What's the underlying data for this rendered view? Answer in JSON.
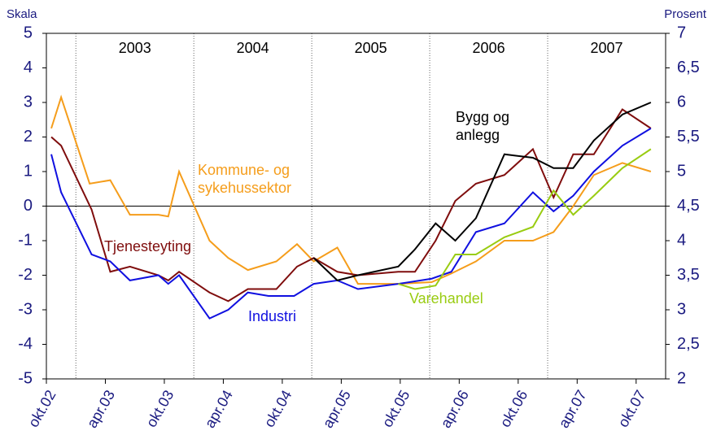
{
  "chart_data": {
    "type": "line",
    "ylabel": "Skala",
    "y2label": "Prosent",
    "xlim": [
      0,
      63
    ],
    "xticks": [
      {
        "value": 0,
        "label": "okt.02"
      },
      {
        "value": 6,
        "label": "apr.03"
      },
      {
        "value": 12,
        "label": "okt.03"
      },
      {
        "value": 18,
        "label": "apr.04"
      },
      {
        "value": 24,
        "label": "okt.04"
      },
      {
        "value": 30,
        "label": "apr.05"
      },
      {
        "value": 36,
        "label": "okt.05"
      },
      {
        "value": 42,
        "label": "apr.06"
      },
      {
        "value": 48,
        "label": "okt.06"
      },
      {
        "value": 54,
        "label": "apr.07"
      },
      {
        "value": 60,
        "label": "okt.07"
      }
    ],
    "ylim": [
      -5,
      5
    ],
    "yticks": [
      -5,
      -4,
      -3,
      -2,
      -1,
      0,
      1,
      2,
      3,
      4,
      5
    ],
    "y2lim": [
      2,
      7
    ],
    "y2ticks": [
      2,
      {
        "value": 2.5,
        "label": "2,5"
      },
      3,
      {
        "value": 3.5,
        "label": "3,5"
      },
      4,
      {
        "value": 4.5,
        "label": "4,5"
      },
      5,
      {
        "value": 5.5,
        "label": "5,5"
      },
      6,
      {
        "value": 6.5,
        "label": "6,5"
      },
      7
    ],
    "years": [
      {
        "label": "2003",
        "start": 3,
        "end": 15
      },
      {
        "label": "2004",
        "start": 15,
        "end": 27
      },
      {
        "label": "2005",
        "start": 27,
        "end": 39
      },
      {
        "label": "2006",
        "start": 39,
        "end": 51
      },
      {
        "label": "2007",
        "start": 51,
        "end": 63
      }
    ],
    "series": [
      {
        "name": "Kommune- og sykehussektor",
        "color": "#f59d1b",
        "x": [
          0.5,
          1.5,
          4.4,
          6.5,
          8.5,
          11.4,
          12.4,
          13.5,
          16.6,
          18.5,
          20.5,
          23.4,
          25.5,
          27.2,
          29.6,
          31.7,
          35.8,
          39.2,
          41.2,
          43.7,
          46.6,
          49.5,
          51.6,
          53.6,
          55.7,
          58.6,
          61.5
        ],
        "values": [
          2.25,
          3.15,
          0.65,
          0.75,
          -0.25,
          -0.25,
          -0.3,
          1.0,
          -1.0,
          -1.5,
          -1.85,
          -1.6,
          -1.1,
          -1.6,
          -1.2,
          -2.25,
          -2.25,
          -2.2,
          -1.95,
          -1.6,
          -1.0,
          -1.0,
          -0.75,
          0.0,
          0.9,
          1.25,
          1.0
        ]
      },
      {
        "name": "Tjenesteyting",
        "color": "#7f0d0d",
        "x": [
          0.5,
          1.5,
          4.6,
          6.5,
          8.5,
          11.4,
          12.4,
          13.5,
          16.6,
          18.5,
          20.5,
          23.4,
          25.5,
          27.2,
          29.6,
          31.7,
          35.8,
          37.5,
          39.6,
          41.6,
          43.7,
          46.6,
          49.5,
          51.6,
          53.6,
          55.7,
          58.6,
          61.5
        ],
        "values": [
          2.0,
          1.75,
          -0.1,
          -1.9,
          -1.75,
          -2.0,
          -2.15,
          -1.9,
          -2.5,
          -2.75,
          -2.4,
          -2.4,
          -1.75,
          -1.5,
          -1.9,
          -2.0,
          -1.9,
          -1.9,
          -1.0,
          0.15,
          0.65,
          0.9,
          1.65,
          0.25,
          1.5,
          1.5,
          2.8,
          2.25
        ]
      },
      {
        "name": "Industri",
        "color": "#1010e0",
        "x": [
          0.5,
          1.5,
          4.6,
          6.5,
          8.5,
          11.4,
          12.4,
          13.5,
          16.6,
          18.5,
          20.5,
          22.6,
          25.2,
          27.2,
          29.6,
          31.7,
          35.8,
          39.2,
          41.2,
          43.7,
          46.6,
          49.5,
          51.6,
          53.6,
          55.7,
          58.6,
          61.5
        ],
        "values": [
          1.5,
          0.4,
          -1.4,
          -1.6,
          -2.15,
          -2.0,
          -2.25,
          -2.0,
          -3.25,
          -3.0,
          -2.5,
          -2.6,
          -2.6,
          -2.25,
          -2.15,
          -2.4,
          -2.25,
          -2.1,
          -1.9,
          -0.75,
          -0.5,
          0.4,
          -0.15,
          0.3,
          1.0,
          1.75,
          2.25
        ]
      },
      {
        "name": "Bygg og anlegg",
        "color": "#000000",
        "x": [
          27.2,
          29.6,
          31.7,
          35.8,
          37.5,
          39.6,
          41.6,
          43.7,
          46.6,
          49.5,
          51.6,
          53.6,
          55.7,
          58.6,
          61.5
        ],
        "values": [
          -1.5,
          -2.15,
          -2.0,
          -1.75,
          -1.25,
          -0.5,
          -1.0,
          -0.35,
          1.5,
          1.4,
          1.1,
          1.1,
          1.9,
          2.65,
          3.0
        ]
      },
      {
        "name": "Varehandel",
        "color": "#99cc11",
        "x": [
          35.8,
          37.5,
          39.6,
          41.6,
          43.7,
          46.6,
          49.5,
          51.6,
          53.6,
          55.7,
          58.6,
          61.5
        ],
        "values": [
          -2.25,
          -2.4,
          -2.3,
          -1.4,
          -1.4,
          -0.9,
          -0.6,
          0.45,
          -0.25,
          0.3,
          1.1,
          1.65
        ]
      }
    ]
  }
}
